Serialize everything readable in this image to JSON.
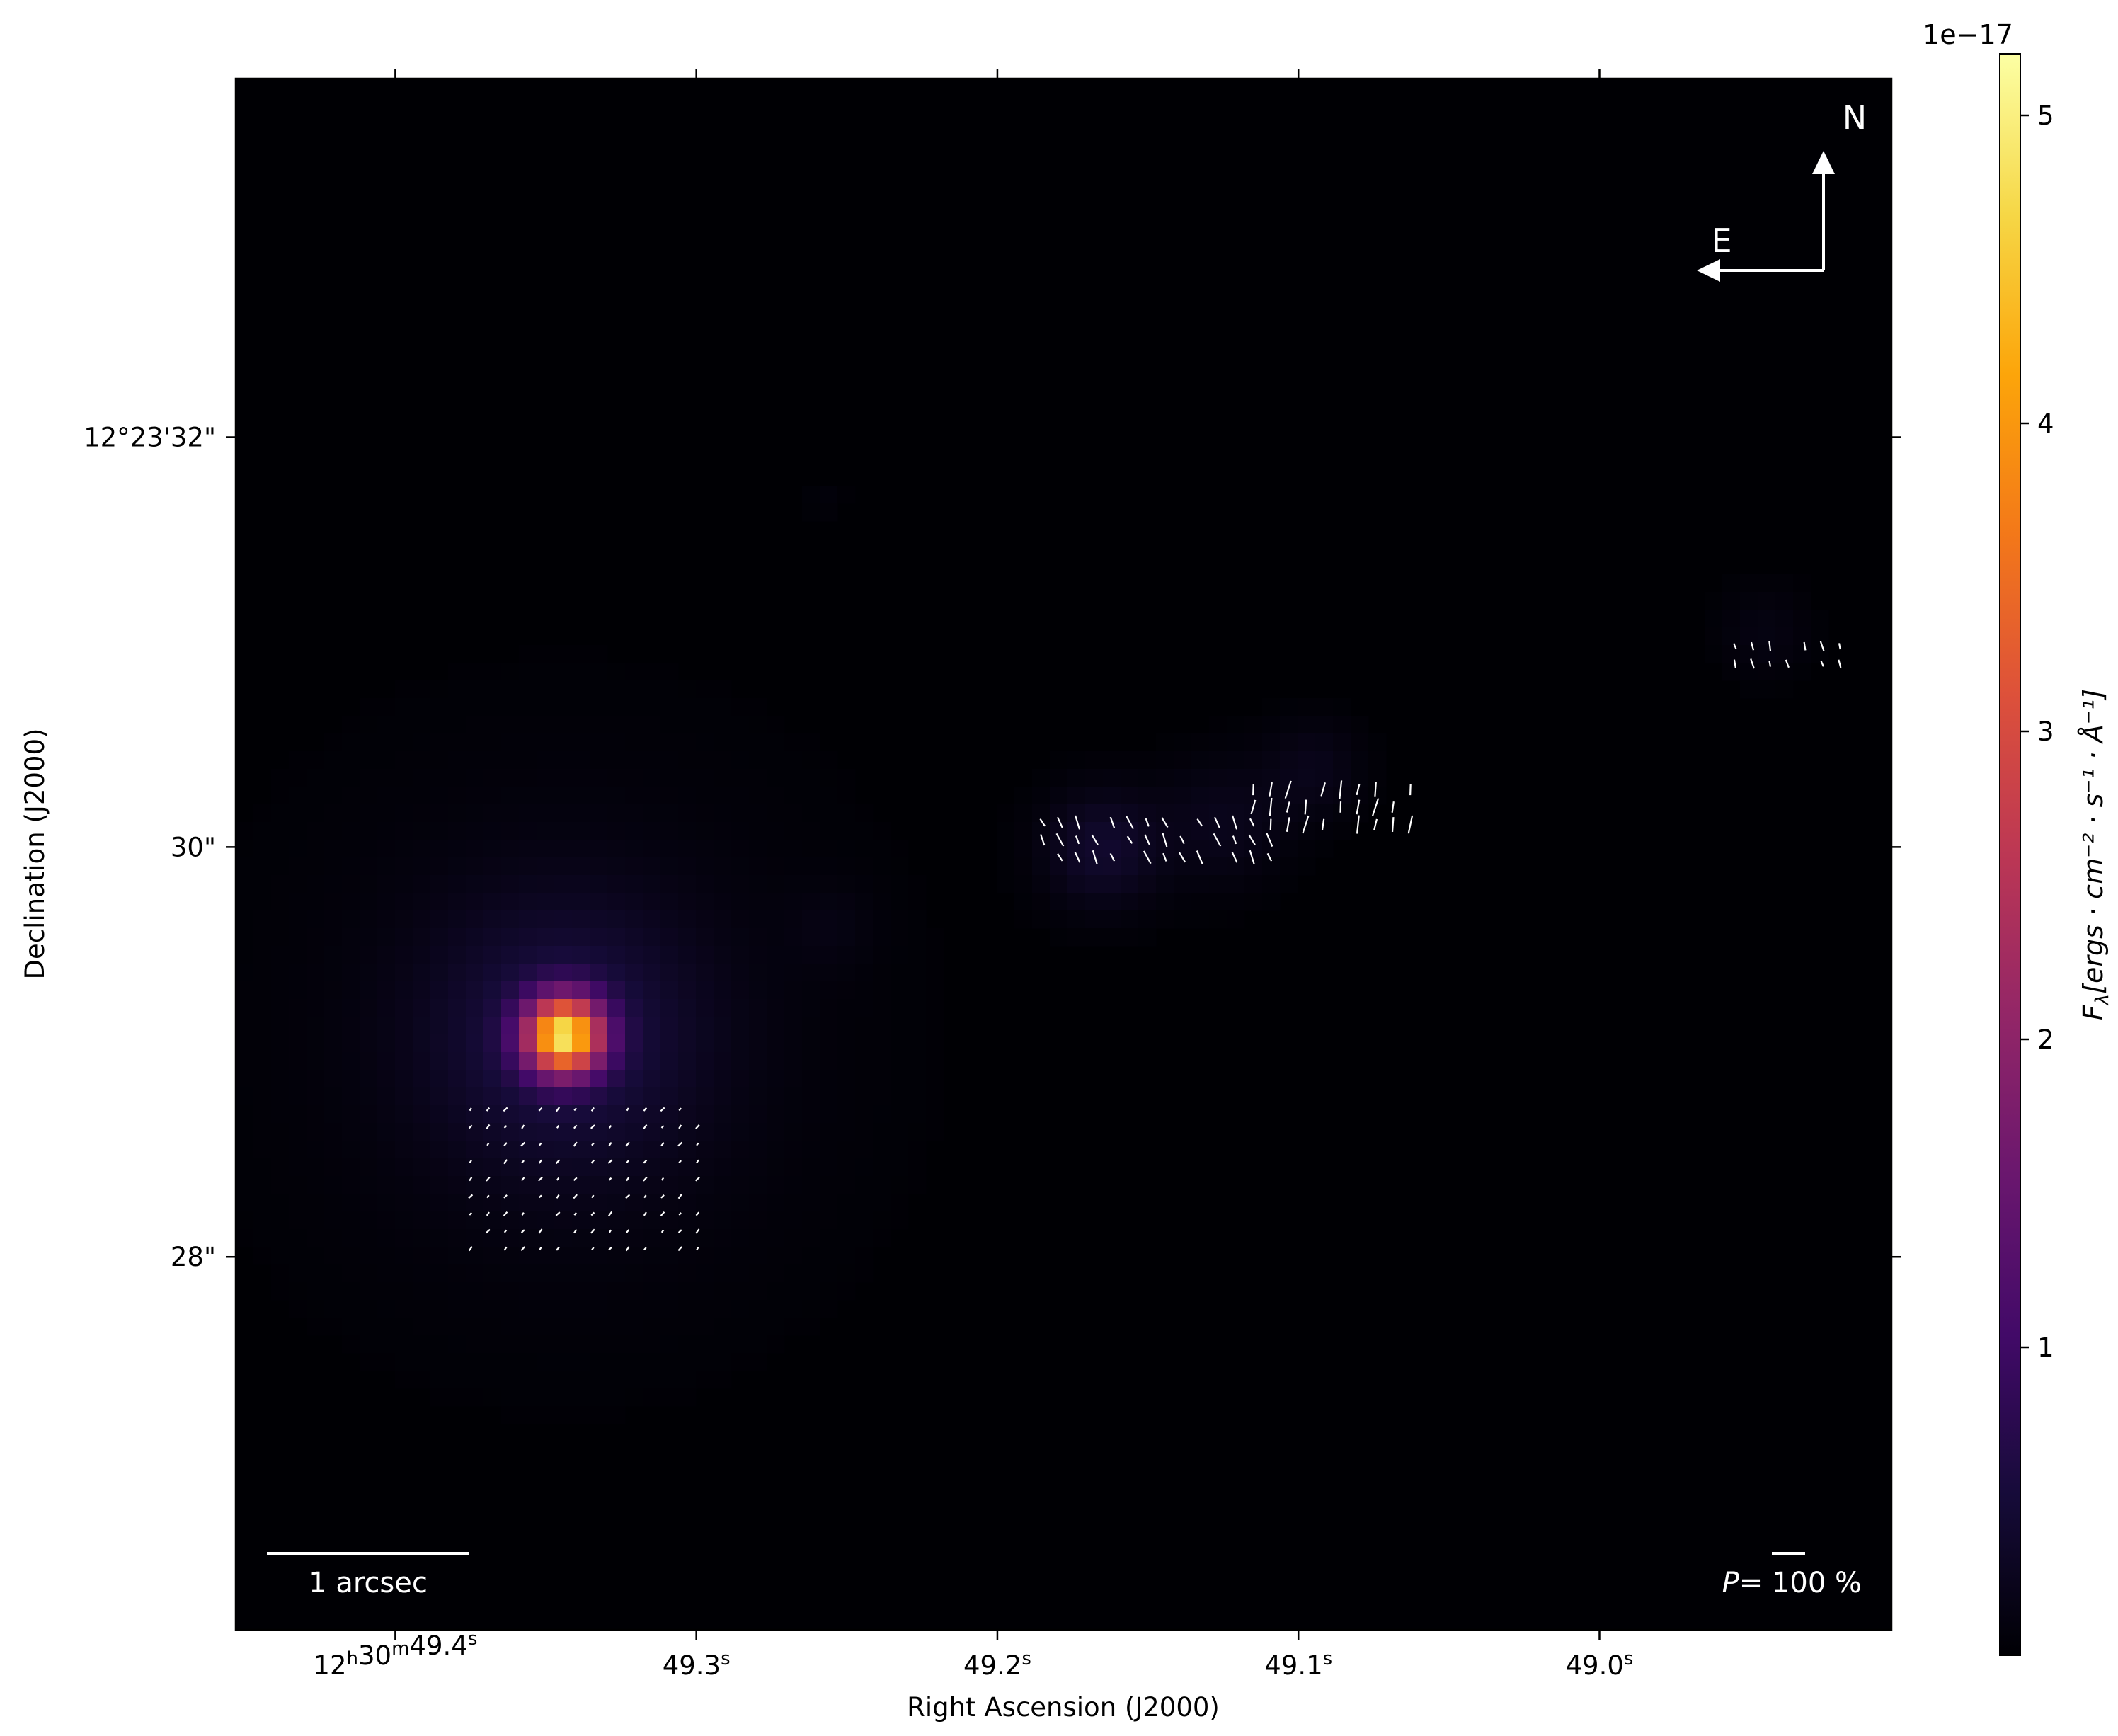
{
  "chart_data": {
    "type": "heatmap",
    "description_type": "polarization map over flux image",
    "xlabel": "Right Ascension (J2000)",
    "ylabel": "Declination (J2000)",
    "x_ticks": [
      {
        "label": "12h30m49.4s",
        "ra_s": 49.4
      },
      {
        "label": "49.3s",
        "ra_s": 49.3
      },
      {
        "label": "49.2s",
        "ra_s": 49.2
      },
      {
        "label": "49.1s",
        "ra_s": 49.1
      },
      {
        "label": "49.0s",
        "ra_s": 49.0
      }
    ],
    "y_ticks": [
      {
        "label": "12°23'32\"",
        "dec_arcsec": 32
      },
      {
        "label": "30\"",
        "dec_arcsec": 30
      },
      {
        "label": "28\"",
        "dec_arcsec": 28
      }
    ],
    "x_range_ra_s": [
      49.453,
      48.903
    ],
    "y_range_dec_arcsec": [
      26.18,
      33.75
    ],
    "colorbar": {
      "label": "F_λ [ergs · cm^−2 · s^−1 · Å^−1]",
      "label_main": "F",
      "label_sub": "λ",
      "label_units": "[ergs · cm⁻² · s⁻¹ · Å⁻¹]",
      "multiplier": "1e−17",
      "ticks": [
        1,
        2,
        3,
        4,
        5
      ],
      "range": [
        0.0,
        5.2
      ],
      "colormap": "inferno"
    },
    "scale_bar": {
      "label": "1 arcsec"
    },
    "polarization_scale": {
      "label_p": "P",
      "label_rest": "= 100 %"
    },
    "compass": {
      "north": "N",
      "east": "E"
    },
    "sources": [
      {
        "ra_s": 49.344,
        "dec_arcsec": 29.08,
        "peak": 4.3,
        "sigma_arcsec": 0.13
      },
      {
        "ra_s": 49.344,
        "dec_arcsec": 29.08,
        "peak": 0.55,
        "sigma_arcsec": 0.45
      },
      {
        "ra_s": 49.344,
        "dec_arcsec": 29.08,
        "peak": 0.12,
        "sigma_arcsec": 1.0
      },
      {
        "ra_s": 49.165,
        "dec_arcsec": 29.99,
        "peak": 0.4,
        "sigma_arcsec": 0.2
      },
      {
        "ra_s": 49.125,
        "dec_arcsec": 30.12,
        "peak": 0.22,
        "sigma_arcsec": 0.22
      },
      {
        "ra_s": 49.095,
        "dec_arcsec": 30.38,
        "peak": 0.2,
        "sigma_arcsec": 0.17
      },
      {
        "ra_s": 48.945,
        "dec_arcsec": 31.05,
        "peak": 0.13,
        "sigma_arcsec": 0.16
      },
      {
        "ra_s": 49.255,
        "dec_arcsec": 29.62,
        "peak": 0.1,
        "sigma_arcsec": 0.15
      },
      {
        "ra_s": 49.257,
        "dec_arcsec": 31.7,
        "peak": 0.06,
        "sigma_arcsec": 0.07
      }
    ],
    "vector_groups": [
      {
        "ra_start": 49.185,
        "dec_start": 30.12,
        "ra_step": -0.0058,
        "dec_step": 0.085,
        "cols": 14,
        "rows": 3,
        "angle": -25,
        "length": 0.07
      },
      {
        "ra_start": 49.115,
        "dec_start": 30.28,
        "ra_step": -0.0058,
        "dec_step": 0.085,
        "cols": 10,
        "rows": 3,
        "angle": 10,
        "length": 0.09
      },
      {
        "ra_start": 48.955,
        "dec_start": 30.98,
        "ra_step": -0.0058,
        "dec_step": 0.085,
        "cols": 7,
        "rows": 2,
        "angle": -15,
        "length": 0.05
      },
      {
        "ra_start": 49.375,
        "dec_start": 28.72,
        "ra_step": -0.0058,
        "dec_step": 0.085,
        "cols": 14,
        "rows": 9,
        "angle": 40,
        "length": 0.025
      }
    ],
    "grid": false
  }
}
